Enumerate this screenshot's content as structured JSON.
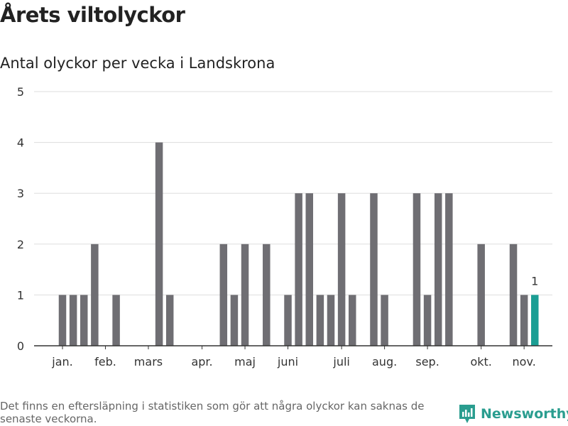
{
  "title": "Årets viltolyckor",
  "subtitle": "Antal olyckor per vecka i Landskrona",
  "footer_note": "Det finns en eftersläpning i statistiken som gör att några olyckor kan saknas de senaste veckorna.",
  "brand": {
    "name": "Newsworthy",
    "icon": "newsworthy-logo-icon",
    "color": "#2a9d8f"
  },
  "colors": {
    "bar": "#6f6e73",
    "highlight": "#1b9e94",
    "grid": "#dddddd",
    "axis": "#333333"
  },
  "chart_data": {
    "type": "bar",
    "title": "Antal olyckor per vecka i Landskrona",
    "xlabel": "",
    "ylabel": "",
    "ylim": [
      0,
      5
    ],
    "y_ticks": [
      0,
      1,
      2,
      3,
      4,
      5
    ],
    "grid": true,
    "x_tick_labels": [
      {
        "label": "jan.",
        "week": 1
      },
      {
        "label": "feb.",
        "week": 5
      },
      {
        "label": "mars",
        "week": 9
      },
      {
        "label": "apr.",
        "week": 14
      },
      {
        "label": "maj",
        "week": 18
      },
      {
        "label": "juni",
        "week": 22
      },
      {
        "label": "juli",
        "week": 27
      },
      {
        "label": "aug.",
        "week": 31
      },
      {
        "label": "sep.",
        "week": 35
      },
      {
        "label": "okt.",
        "week": 40
      },
      {
        "label": "nov.",
        "week": 44
      }
    ],
    "weeks": [
      1,
      2,
      3,
      4,
      5,
      6,
      7,
      8,
      9,
      10,
      11,
      12,
      13,
      14,
      15,
      16,
      17,
      18,
      19,
      20,
      21,
      22,
      23,
      24,
      25,
      26,
      27,
      28,
      29,
      30,
      31,
      32,
      33,
      34,
      35,
      36,
      37,
      38,
      39,
      40,
      41,
      42,
      43,
      44
    ],
    "values": [
      1,
      1,
      1,
      2,
      0,
      1,
      0,
      0,
      0,
      4,
      1,
      0,
      0,
      0,
      0,
      2,
      1,
      2,
      0,
      2,
      0,
      1,
      3,
      3,
      1,
      1,
      3,
      1,
      0,
      3,
      1,
      0,
      0,
      3,
      1,
      3,
      3,
      0,
      0,
      2,
      0,
      0,
      2,
      1
    ],
    "highlight": {
      "week": 45,
      "value": 1,
      "label": "1"
    }
  }
}
